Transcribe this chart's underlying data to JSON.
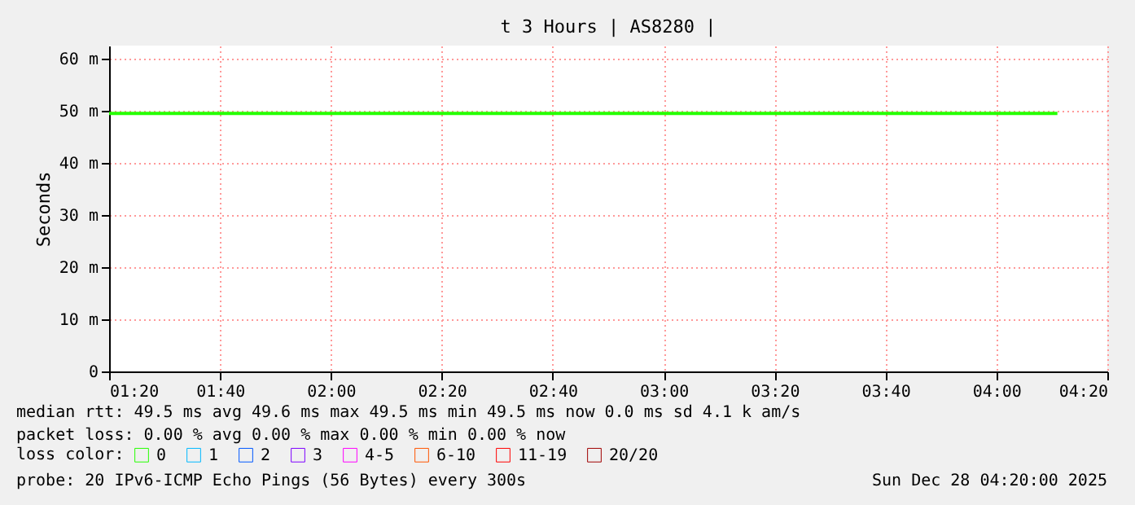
{
  "chart_data": {
    "type": "line",
    "title": "t 3 Hours | AS8280 |",
    "ylabel": "Seconds",
    "x": [
      1.3333,
      4.1833
    ],
    "series": [
      {
        "name": "0",
        "color": "#26ff00",
        "values": [
          49.5,
          49.5
        ]
      },
      {
        "name": "1",
        "color": "#00b8ff",
        "values": [
          null,
          null
        ]
      },
      {
        "name": "2",
        "color": "#0059ff",
        "values": [
          null,
          null
        ]
      },
      {
        "name": "3",
        "color": "#7e00ff",
        "values": [
          null,
          null
        ]
      },
      {
        "name": "4-5",
        "color": "#ff00ff",
        "values": [
          null,
          null
        ]
      },
      {
        "name": "6-10",
        "color": "#ff5500",
        "values": [
          null,
          null
        ]
      },
      {
        "name": "11-19",
        "color": "#ff0000",
        "values": [
          null,
          null
        ]
      },
      {
        "name": "20/20",
        "color": "#a00000",
        "values": [
          null,
          null
        ]
      }
    ],
    "legend_title": "loss color:",
    "legend": "bottom",
    "xlim": [
      1.3333,
      4.3333
    ],
    "xticks": [
      {
        "value": 1.3333,
        "label": "01:20"
      },
      {
        "value": 1.6667,
        "label": "01:40"
      },
      {
        "value": 2.0,
        "label": "02:00"
      },
      {
        "value": 2.3333,
        "label": "02:20"
      },
      {
        "value": 2.6667,
        "label": "02:40"
      },
      {
        "value": 3.0,
        "label": "03:00"
      },
      {
        "value": 3.3333,
        "label": "03:20"
      },
      {
        "value": 3.6667,
        "label": "03:40"
      },
      {
        "value": 4.0,
        "label": "04:00"
      },
      {
        "value": 4.3333,
        "label": "04:20"
      }
    ],
    "ylim": [
      0,
      62.5
    ],
    "yticks": [
      0,
      {
        "value": 10,
        "label": "10 m"
      },
      {
        "value": 20,
        "label": "20 m"
      },
      {
        "value": 30,
        "label": "30 m"
      },
      {
        "value": 40,
        "label": "40 m"
      },
      {
        "value": 50,
        "label": "50 m"
      },
      {
        "value": 60,
        "label": "60 m"
      }
    ],
    "grid": true,
    "marker": "none",
    "line_style": "solid",
    "annotations": [
      "median rtt:  49.5 ms avg  49.6 ms max  49.5 ms min  49.5 ms now   0.0 ms sd   4.1 k am/s",
      "packet loss: 0.00 % avg  0.00 % max  0.00 % min  0.00 % now",
      "probe:       20 IPv6-ICMP Echo Pings (56 Bytes) every 300s",
      "Sun Dec 28 04:20:00 2025"
    ]
  }
}
